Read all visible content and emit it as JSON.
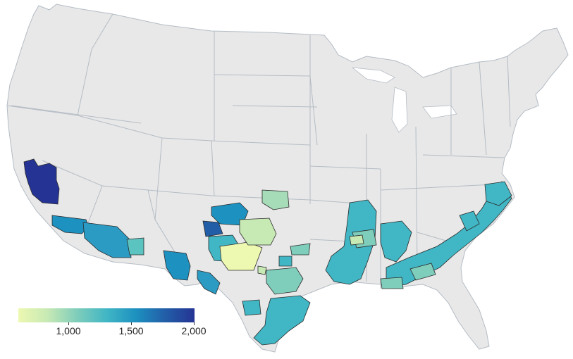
{
  "map": {
    "base_fill": "#e8e8e8",
    "border_color": "#b4bcc4",
    "county_stroke": "#2b2b2b"
  },
  "legend": {
    "gradient_colors": [
      "#edf8b1",
      "#c7e9b4",
      "#7fcdbb",
      "#41b6c4",
      "#1d91c0",
      "#225ea8",
      "#253494"
    ],
    "min": 600,
    "max": 2000,
    "ticks": [
      {
        "value": 1000,
        "label": "1,000"
      },
      {
        "value": 1500,
        "label": "1,500"
      },
      {
        "value": 2000,
        "label": "2,000"
      }
    ]
  }
}
